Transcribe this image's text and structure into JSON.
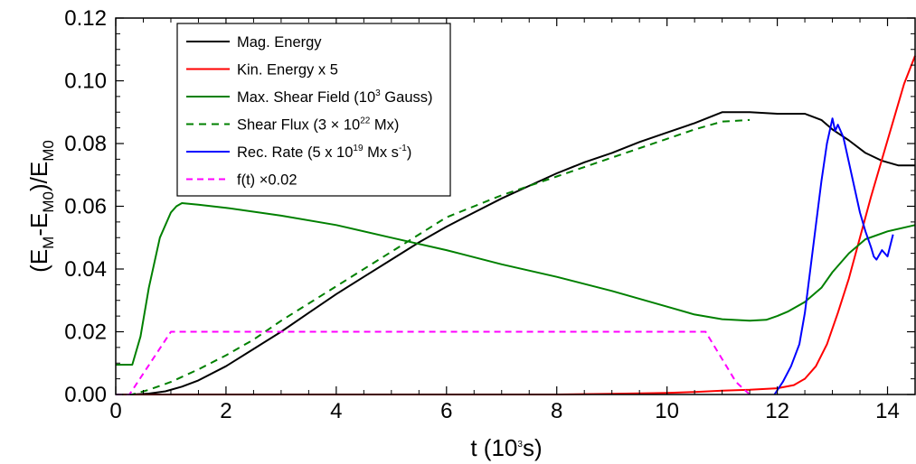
{
  "chart_data": {
    "type": "line",
    "title": "",
    "xlabel": {
      "main": "t (10",
      "sup": "3",
      "end": "s)"
    },
    "ylabel": {
      "a": "(E",
      "a_sub": "M",
      "b": "-E",
      "b_sub": "M0",
      "c": ")/E",
      "c_sub": "M0"
    },
    "xlim": [
      0,
      14.5
    ],
    "ylim": [
      0,
      0.12
    ],
    "x_ticks": [
      0,
      2,
      4,
      6,
      8,
      10,
      12,
      14
    ],
    "x_tick_labels": [
      "0",
      "2",
      "4",
      "6",
      "8",
      "10",
      "12",
      "14"
    ],
    "y_ticks": [
      0,
      0.02,
      0.04,
      0.06,
      0.08,
      0.1,
      0.12
    ],
    "y_tick_labels": [
      "0.00",
      "0.02",
      "0.04",
      "0.06",
      "0.08",
      "0.10",
      "0.12"
    ],
    "grid": false,
    "legend_position": "top-left",
    "legend": [
      {
        "pre": "Mag. Energy",
        "sup": "",
        "post": ""
      },
      {
        "pre": "Kin. Energy x 5",
        "sup": "",
        "post": ""
      },
      {
        "pre": "Max. Shear Field (10",
        "sup": "3",
        "post": " Gauss)"
      },
      {
        "pre": "Shear Flux (3 × 10",
        "sup": "22",
        "post": " Mx)"
      },
      {
        "pre": "Rec. Rate (5 x 10",
        "sup": "19",
        "post": " Mx s",
        "sup2": "-1",
        "post2": ")"
      },
      {
        "pre": "f(t)  ×0.02",
        "sup": "",
        "post": ""
      }
    ],
    "series": [
      {
        "color": "#000000",
        "dash": "solid",
        "x": [
          0,
          0.3,
          0.6,
          0.9,
          1.2,
          1.5,
          2.0,
          2.5,
          3.0,
          3.5,
          4.0,
          4.5,
          5.0,
          5.5,
          6.0,
          6.5,
          7.0,
          7.5,
          8.0,
          8.5,
          9.0,
          9.5,
          10.0,
          10.5,
          11.0,
          11.5,
          12.0,
          12.5,
          12.8,
          13.0,
          13.3,
          13.6,
          13.9,
          14.2,
          14.5
        ],
        "y": [
          0,
          0,
          0.0003,
          0.001,
          0.0025,
          0.0045,
          0.009,
          0.0145,
          0.02,
          0.026,
          0.032,
          0.0375,
          0.043,
          0.0485,
          0.0535,
          0.058,
          0.0625,
          0.0665,
          0.0705,
          0.074,
          0.077,
          0.0805,
          0.0835,
          0.0865,
          0.09,
          0.09,
          0.0895,
          0.0895,
          0.0875,
          0.0845,
          0.081,
          0.077,
          0.0745,
          0.073,
          0.073
        ]
      },
      {
        "color": "#ff0000",
        "dash": "solid",
        "x": [
          0,
          2,
          4,
          6,
          8,
          9,
          10,
          10.5,
          11,
          11.5,
          12.0,
          12.3,
          12.5,
          12.7,
          12.9,
          13.1,
          13.3,
          13.5,
          13.7,
          13.9,
          14.1,
          14.3,
          14.5
        ],
        "y": [
          0,
          0,
          0,
          0,
          0,
          0.0002,
          0.0005,
          0.0008,
          0.0012,
          0.0015,
          0.002,
          0.003,
          0.005,
          0.009,
          0.016,
          0.026,
          0.037,
          0.05,
          0.063,
          0.075,
          0.087,
          0.099,
          0.108
        ]
      },
      {
        "color": "#008000",
        "dash": "solid",
        "x": [
          0,
          0.3,
          0.45,
          0.6,
          0.8,
          1.0,
          1.1,
          1.2,
          1.5,
          2.0,
          3.0,
          4.0,
          5.0,
          6.0,
          7.0,
          8.0,
          9.0,
          10.0,
          10.5,
          11.0,
          11.5,
          11.8,
          12.0,
          12.2,
          12.5,
          12.8,
          13.0,
          13.3,
          13.6,
          14.0,
          14.5
        ],
        "y": [
          0.0095,
          0.0095,
          0.0185,
          0.034,
          0.05,
          0.058,
          0.06,
          0.061,
          0.0605,
          0.0595,
          0.057,
          0.054,
          0.05,
          0.046,
          0.0415,
          0.0375,
          0.033,
          0.028,
          0.0255,
          0.024,
          0.0235,
          0.0238,
          0.025,
          0.0265,
          0.0295,
          0.034,
          0.039,
          0.045,
          0.0495,
          0.052,
          0.054
        ]
      },
      {
        "color": "#008000",
        "dash": "8,6",
        "x": [
          0,
          0.3,
          0.6,
          1.0,
          1.5,
          2.0,
          2.5,
          3.0,
          4.0,
          5.0,
          6.0,
          7.0,
          8.0,
          9.0,
          10.0,
          10.5,
          11.0,
          11.5
        ],
        "y": [
          0,
          0,
          0.0015,
          0.004,
          0.008,
          0.0125,
          0.0175,
          0.0235,
          0.0345,
          0.0455,
          0.0565,
          0.0635,
          0.0695,
          0.0755,
          0.0815,
          0.0845,
          0.087,
          0.0875
        ]
      },
      {
        "color": "#0000ff",
        "dash": "solid",
        "x": [
          11.95,
          12.1,
          12.25,
          12.4,
          12.5,
          12.6,
          12.7,
          12.8,
          12.9,
          13.0,
          13.05,
          13.1,
          13.2,
          13.3,
          13.4,
          13.5,
          13.6,
          13.7,
          13.75,
          13.8,
          13.9,
          14.0,
          14.1
        ],
        "y": [
          0,
          0.004,
          0.009,
          0.016,
          0.026,
          0.04,
          0.054,
          0.068,
          0.08,
          0.088,
          0.084,
          0.086,
          0.082,
          0.074,
          0.066,
          0.058,
          0.052,
          0.047,
          0.044,
          0.043,
          0.046,
          0.044,
          0.051
        ]
      },
      {
        "color": "#ff00ff",
        "dash": "7,5",
        "x": [
          0,
          0.25,
          1.0,
          10.5,
          10.7,
          11.25,
          11.5
        ],
        "y": [
          0,
          0,
          0.02,
          0.02,
          0.02,
          0.004,
          0
        ]
      }
    ]
  }
}
